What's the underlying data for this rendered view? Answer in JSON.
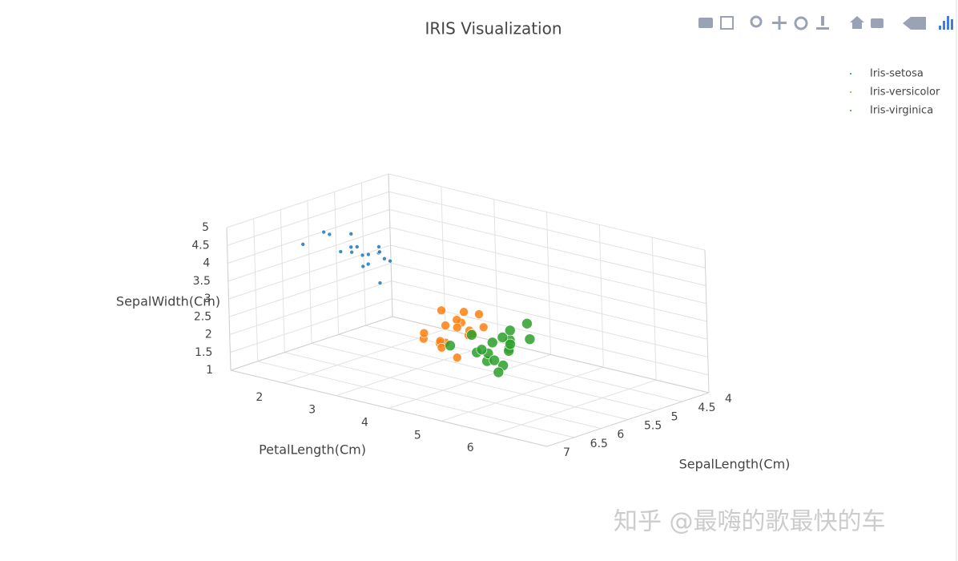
{
  "chart_data": {
    "type": "scatter3d",
    "title": "IRIS Visualization",
    "xaxis_title": "SepalLength(Cm)",
    "yaxis_title": "PetalLength(Cm)",
    "zaxis_title": "SepalWidth(Cm)",
    "xlim": [
      4,
      7
    ],
    "xticks": [
      4,
      4.5,
      5,
      5.5,
      6,
      6.5,
      7
    ],
    "ylim": [
      1,
      7
    ],
    "yticks": [
      2,
      3,
      4,
      5,
      6
    ],
    "zlim": [
      1,
      5
    ],
    "zticks": [
      1,
      1.5,
      2,
      2.5,
      3,
      3.5,
      4,
      4.5,
      5
    ],
    "grid": true,
    "legend_position": "top-right",
    "watermark": "知乎 @最嗨的歌最快的车",
    "series": [
      {
        "name": "Iris-setosa",
        "color": "#1f77b4",
        "marker_size": 2.5,
        "x": [
          5.1,
          4.9,
          4.7,
          4.6,
          5.0,
          5.4,
          4.6,
          5.0,
          4.4,
          4.9,
          5.4,
          4.8,
          4.3,
          5.8,
          5.7,
          5.2,
          5.5,
          4.5
        ],
        "y": [
          1.4,
          1.4,
          1.3,
          1.5,
          1.4,
          1.7,
          1.4,
          1.5,
          1.4,
          1.5,
          1.5,
          1.6,
          1.1,
          1.2,
          1.5,
          1.5,
          1.4,
          1.3
        ],
        "z": [
          3.5,
          3.0,
          3.2,
          3.1,
          3.6,
          3.9,
          3.4,
          3.4,
          2.9,
          3.1,
          3.7,
          3.4,
          3.0,
          4.0,
          4.4,
          4.1,
          4.2,
          2.3
        ]
      },
      {
        "name": "Iris-versicolor",
        "color": "#ff7f0e",
        "marker_size": 5.5,
        "x": [
          7.0,
          6.4,
          6.9,
          5.5,
          6.5,
          5.7,
          6.3,
          4.9,
          6.6,
          5.2,
          5.0,
          5.9,
          6.0,
          6.1,
          5.6,
          6.7,
          5.8,
          6.2
        ],
        "y": [
          4.7,
          4.5,
          4.9,
          4.0,
          4.6,
          4.5,
          4.7,
          3.3,
          4.6,
          3.9,
          3.5,
          4.2,
          4.0,
          4.7,
          3.6,
          4.4,
          4.1,
          4.5
        ],
        "z": [
          3.2,
          3.2,
          3.1,
          2.3,
          2.8,
          2.8,
          3.3,
          2.4,
          2.9,
          2.7,
          2.0,
          3.0,
          2.2,
          2.9,
          2.9,
          3.1,
          2.7,
          2.2
        ]
      },
      {
        "name": "Iris-virginica",
        "color": "#2ca02c",
        "marker_size": 6.5,
        "x": [
          6.3,
          5.8,
          7.0,
          6.3,
          6.5,
          6.7,
          4.9,
          6.9,
          6.7,
          6.8,
          6.5,
          6.4,
          6.8,
          5.7,
          6.9,
          6.0,
          6.9,
          5.6
        ],
        "y": [
          6.0,
          5.1,
          5.9,
          5.6,
          5.8,
          5.7,
          4.5,
          6.1,
          5.8,
          6.0,
          5.1,
          5.3,
          5.5,
          5.0,
          5.1,
          5.0,
          5.7,
          4.9
        ],
        "z": [
          3.3,
          2.7,
          3.0,
          2.9,
          3.0,
          3.3,
          2.5,
          2.9,
          2.5,
          3.6,
          3.2,
          2.7,
          3.0,
          2.5,
          3.1,
          2.2,
          3.2,
          2.8
        ]
      }
    ]
  }
}
